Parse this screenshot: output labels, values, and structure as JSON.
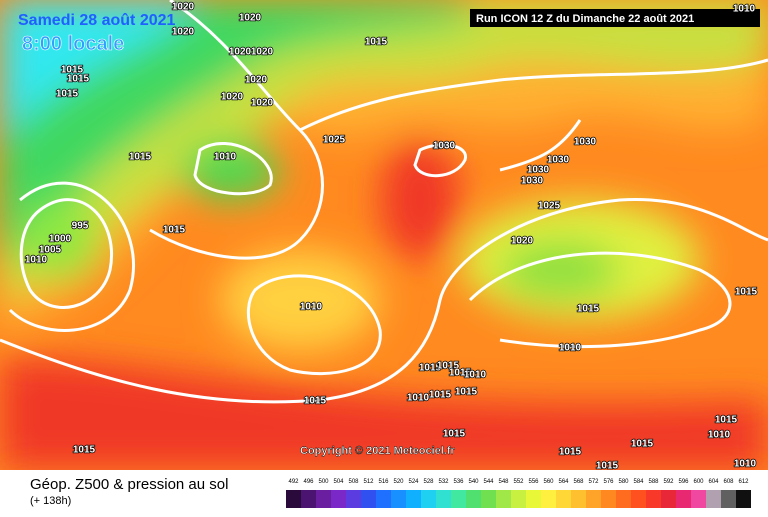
{
  "header": {
    "date": "Samedi 28 août 2021",
    "time": "8:00 locale",
    "run": "Run ICON 12 Z du Dimanche 22 août 2021"
  },
  "map": {
    "copyright": "Copyright © 2021 Meteociel.fr",
    "isobar_labels": [
      1020,
      1020,
      1020,
      1020,
      1020,
      1015,
      1015,
      1015,
      1015,
      1020,
      1020,
      1020,
      1010,
      1015,
      1025,
      1030,
      1030,
      1030,
      1030,
      1030,
      995,
      1000,
      1005,
      1010,
      1015,
      1025,
      1020,
      1010,
      1015,
      1015,
      1010,
      1015,
      1015,
      1015,
      1010,
      1015,
      1015,
      1015,
      1015,
      1015,
      1015,
      1015,
      1015,
      1015,
      1010,
      1010,
      1010,
      1010
    ]
  },
  "footer": {
    "title": "Géop. Z500 & pression au sol",
    "lead": "(+ 138h)",
    "scale": {
      "labels": [
        492,
        496,
        500,
        504,
        508,
        512,
        516,
        520,
        524,
        528,
        532,
        536,
        540,
        544,
        548,
        552,
        556,
        560,
        564,
        568,
        572,
        576,
        580,
        584,
        588,
        592,
        596,
        600,
        604,
        608,
        612
      ],
      "colors": [
        "#2a0a3a",
        "#4a1470",
        "#6a1ea0",
        "#7a28c8",
        "#5a3ce0",
        "#3050f0",
        "#2070ff",
        "#1890ff",
        "#10b0ff",
        "#20d0f0",
        "#30e0d0",
        "#40e8a0",
        "#50e070",
        "#70e050",
        "#a0e848",
        "#c8f040",
        "#e8f838",
        "#fff040",
        "#ffd838",
        "#ffc030",
        "#ffa428",
        "#ff8820",
        "#ff6c20",
        "#ff5020",
        "#f83828",
        "#e82838",
        "#e82870",
        "#f048a0",
        "#b0a0b0",
        "#606060",
        "#101010"
      ]
    }
  }
}
